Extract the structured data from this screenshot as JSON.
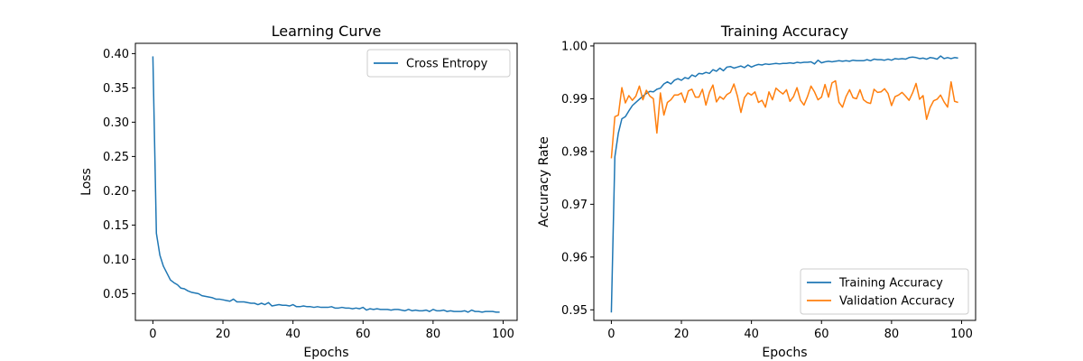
{
  "chart_data": [
    {
      "type": "line",
      "title": "Learning Curve",
      "xlabel": "Epochs",
      "ylabel": "Loss",
      "xlim": [
        -5,
        104
      ],
      "ylim": [
        0.011,
        0.415
      ],
      "xticks": [
        0,
        20,
        40,
        60,
        80,
        100
      ],
      "yticks": [
        0.05,
        0.1,
        0.15,
        0.2,
        0.25,
        0.3,
        0.35,
        0.4
      ],
      "ytick_decimals": 2,
      "legend": "upper right",
      "grid": false,
      "series": [
        {
          "name": "Cross Entropy",
          "color": "#1f77b4",
          "x": [
            0,
            1,
            2,
            3,
            4,
            5,
            6,
            7,
            8,
            9,
            10,
            11,
            12,
            13,
            14,
            15,
            16,
            17,
            18,
            19,
            20,
            21,
            22,
            23,
            24,
            25,
            26,
            27,
            28,
            29,
            30,
            31,
            32,
            33,
            34,
            35,
            36,
            37,
            38,
            39,
            40,
            41,
            42,
            43,
            44,
            45,
            46,
            47,
            48,
            49,
            50,
            51,
            52,
            53,
            54,
            55,
            56,
            57,
            58,
            59,
            60,
            61,
            62,
            63,
            64,
            65,
            66,
            67,
            68,
            69,
            70,
            71,
            72,
            73,
            74,
            75,
            76,
            77,
            78,
            79,
            80,
            81,
            82,
            83,
            84,
            85,
            86,
            87,
            88,
            89,
            90,
            91,
            92,
            93,
            94,
            95,
            96,
            97,
            98,
            99
          ],
          "y": [
            0.396,
            0.138,
            0.106,
            0.09,
            0.08,
            0.07,
            0.066,
            0.063,
            0.058,
            0.057,
            0.054,
            0.052,
            0.051,
            0.05,
            0.047,
            0.046,
            0.045,
            0.044,
            0.042,
            0.042,
            0.041,
            0.04,
            0.039,
            0.042,
            0.038,
            0.038,
            0.038,
            0.037,
            0.036,
            0.036,
            0.034,
            0.036,
            0.034,
            0.037,
            0.032,
            0.033,
            0.034,
            0.033,
            0.033,
            0.032,
            0.034,
            0.031,
            0.031,
            0.032,
            0.031,
            0.031,
            0.03,
            0.031,
            0.03,
            0.03,
            0.03,
            0.031,
            0.029,
            0.029,
            0.03,
            0.029,
            0.029,
            0.028,
            0.029,
            0.028,
            0.03,
            0.026,
            0.028,
            0.027,
            0.028,
            0.027,
            0.027,
            0.027,
            0.026,
            0.027,
            0.027,
            0.026,
            0.025,
            0.027,
            0.025,
            0.026,
            0.025,
            0.025,
            0.026,
            0.024,
            0.027,
            0.025,
            0.025,
            0.026,
            0.024,
            0.025,
            0.024,
            0.024,
            0.024,
            0.025,
            0.023,
            0.026,
            0.024,
            0.024,
            0.023,
            0.024,
            0.024,
            0.024,
            0.023,
            0.023
          ]
        }
      ]
    },
    {
      "type": "line",
      "title": "Training Accuracy",
      "xlabel": "Epochs",
      "ylabel": "Accuracy Rate",
      "xlim": [
        -5,
        104
      ],
      "ylim": [
        0.948,
        1.0005
      ],
      "xticks": [
        0,
        20,
        40,
        60,
        80,
        100
      ],
      "yticks": [
        0.95,
        0.96,
        0.97,
        0.98,
        0.99,
        1.0
      ],
      "ytick_decimals": 2,
      "legend": "lower right",
      "grid": false,
      "series": [
        {
          "name": "Training Accuracy",
          "color": "#1f77b4",
          "x": [
            0,
            1,
            2,
            3,
            4,
            5,
            6,
            7,
            8,
            9,
            10,
            11,
            12,
            13,
            14,
            15,
            16,
            17,
            18,
            19,
            20,
            21,
            22,
            23,
            24,
            25,
            26,
            27,
            28,
            29,
            30,
            31,
            32,
            33,
            34,
            35,
            36,
            37,
            38,
            39,
            40,
            41,
            42,
            43,
            44,
            45,
            46,
            47,
            48,
            49,
            50,
            51,
            52,
            53,
            54,
            55,
            56,
            57,
            58,
            59,
            60,
            61,
            62,
            63,
            64,
            65,
            66,
            67,
            68,
            69,
            70,
            71,
            72,
            73,
            74,
            75,
            76,
            77,
            78,
            79,
            80,
            81,
            82,
            83,
            84,
            85,
            86,
            87,
            88,
            89,
            90,
            91,
            92,
            93,
            94,
            95,
            96,
            97,
            98,
            99
          ],
          "y": [
            0.9495,
            0.979,
            0.9835,
            0.9862,
            0.9866,
            0.9877,
            0.9887,
            0.9893,
            0.9899,
            0.9905,
            0.991,
            0.9914,
            0.9913,
            0.9918,
            0.992,
            0.9928,
            0.9932,
            0.9928,
            0.9935,
            0.9938,
            0.9935,
            0.994,
            0.9938,
            0.9945,
            0.9942,
            0.9948,
            0.9947,
            0.995,
            0.9948,
            0.9955,
            0.9952,
            0.9958,
            0.9953,
            0.996,
            0.9961,
            0.9958,
            0.996,
            0.9962,
            0.9959,
            0.9964,
            0.996,
            0.9963,
            0.9965,
            0.9964,
            0.9966,
            0.9965,
            0.9966,
            0.9967,
            0.9966,
            0.9967,
            0.9967,
            0.9968,
            0.9967,
            0.9969,
            0.9968,
            0.9969,
            0.9969,
            0.997,
            0.9966,
            0.9973,
            0.9968,
            0.997,
            0.9971,
            0.997,
            0.9971,
            0.9972,
            0.9971,
            0.9972,
            0.9971,
            0.9973,
            0.9972,
            0.9972,
            0.9972,
            0.9974,
            0.9972,
            0.9975,
            0.9974,
            0.9974,
            0.9973,
            0.9975,
            0.9973,
            0.9976,
            0.9975,
            0.9976,
            0.9975,
            0.9978,
            0.9979,
            0.9978,
            0.9976,
            0.9977,
            0.9975,
            0.9978,
            0.9977,
            0.9975,
            0.9981,
            0.9976,
            0.9978,
            0.9976,
            0.9978,
            0.9977
          ]
        },
        {
          "name": "Validation Accuracy",
          "color": "#ff7f0e",
          "x": [
            0,
            1,
            2,
            3,
            4,
            5,
            6,
            7,
            8,
            9,
            10,
            11,
            12,
            13,
            14,
            15,
            16,
            17,
            18,
            19,
            20,
            21,
            22,
            23,
            24,
            25,
            26,
            27,
            28,
            29,
            30,
            31,
            32,
            33,
            34,
            35,
            36,
            37,
            38,
            39,
            40,
            41,
            42,
            43,
            44,
            45,
            46,
            47,
            48,
            49,
            50,
            51,
            52,
            53,
            54,
            55,
            56,
            57,
            58,
            59,
            60,
            61,
            62,
            63,
            64,
            65,
            66,
            67,
            68,
            69,
            70,
            71,
            72,
            73,
            74,
            75,
            76,
            77,
            78,
            79,
            80,
            81,
            82,
            83,
            84,
            85,
            86,
            87,
            88,
            89,
            90,
            91,
            92,
            93,
            94,
            95,
            96,
            97,
            98,
            99
          ],
          "y": [
            0.9787,
            0.9866,
            0.9869,
            0.9921,
            0.9892,
            0.9906,
            0.9897,
            0.9905,
            0.9924,
            0.9898,
            0.9916,
            0.9905,
            0.99,
            0.9835,
            0.9911,
            0.9869,
            0.9893,
            0.9898,
            0.9907,
            0.9907,
            0.9911,
            0.9893,
            0.9915,
            0.9918,
            0.9903,
            0.9903,
            0.9918,
            0.9888,
            0.9912,
            0.9926,
            0.9894,
            0.9904,
            0.9899,
            0.9908,
            0.9912,
            0.9928,
            0.9905,
            0.9874,
            0.9902,
            0.9911,
            0.9907,
            0.9913,
            0.9893,
            0.9897,
            0.9884,
            0.9913,
            0.9898,
            0.992,
            0.9914,
            0.9909,
            0.9917,
            0.9895,
            0.9904,
            0.9921,
            0.9897,
            0.9888,
            0.9904,
            0.9924,
            0.9913,
            0.9898,
            0.9903,
            0.9927,
            0.9903,
            0.993,
            0.9934,
            0.9893,
            0.9884,
            0.9904,
            0.9917,
            0.9902,
            0.99,
            0.9917,
            0.9898,
            0.9893,
            0.9891,
            0.9918,
            0.9912,
            0.9913,
            0.9919,
            0.991,
            0.9887,
            0.9904,
            0.9907,
            0.9912,
            0.9905,
            0.9897,
            0.9911,
            0.9929,
            0.9899,
            0.9906,
            0.9861,
            0.9883,
            0.9896,
            0.9899,
            0.9907,
            0.9894,
            0.9884,
            0.9932,
            0.9895,
            0.9893
          ]
        }
      ]
    }
  ]
}
